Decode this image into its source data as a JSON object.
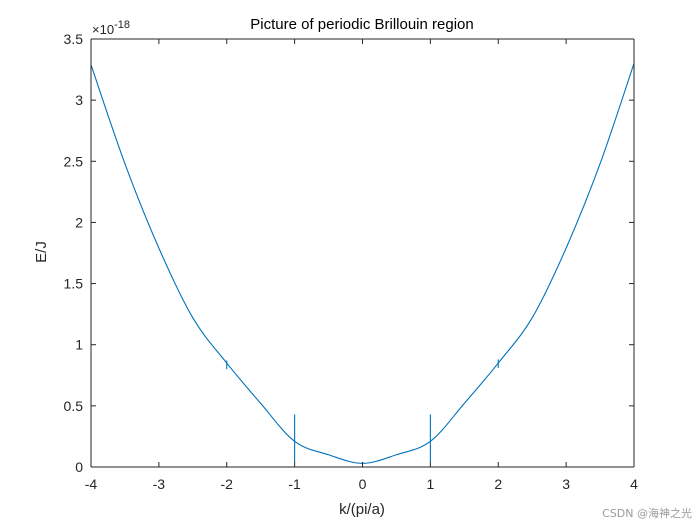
{
  "chart_data": {
    "type": "line",
    "title": "Picture of periodic Brillouin region",
    "xlabel": "k/(pi/a)",
    "ylabel": "E/J",
    "xlim": [
      -4,
      4
    ],
    "ylim": [
      0,
      3.5
    ],
    "y_exponent_label": "×10^-18",
    "grid": false,
    "x_ticks": [
      "-4",
      "-3",
      "-2",
      "-1",
      "0",
      "1",
      "2",
      "3",
      "4"
    ],
    "y_ticks": [
      "0",
      "0.5",
      "1",
      "1.5",
      "2",
      "2.5",
      "3",
      "3.5"
    ],
    "series": [
      {
        "color": "#0072BD",
        "x": [
          -4.0,
          -3.5,
          -3.0,
          -2.5,
          -2.0,
          -1.5,
          -1.0,
          -0.5,
          0.0,
          0.5,
          1.0,
          1.5,
          2.0,
          2.5,
          3.0,
          3.5,
          4.0
        ],
        "y": [
          3.29,
          2.48,
          1.79,
          1.22,
          0.85,
          0.52,
          0.21,
          0.1,
          0.03,
          0.1,
          0.21,
          0.52,
          0.85,
          1.22,
          1.79,
          2.48,
          3.3
        ]
      }
    ],
    "spikes": [
      {
        "x": -1.0,
        "top": 0.43,
        "bottom": 0.04
      },
      {
        "x": 1.0,
        "top": 0.43,
        "bottom": 0.04
      },
      {
        "x": -2.0,
        "top": 0.87,
        "bottom": 0.8
      },
      {
        "x": 2.0,
        "top": 0.88,
        "bottom": 0.81
      }
    ]
  },
  "watermark": "CSDN @海神之光"
}
